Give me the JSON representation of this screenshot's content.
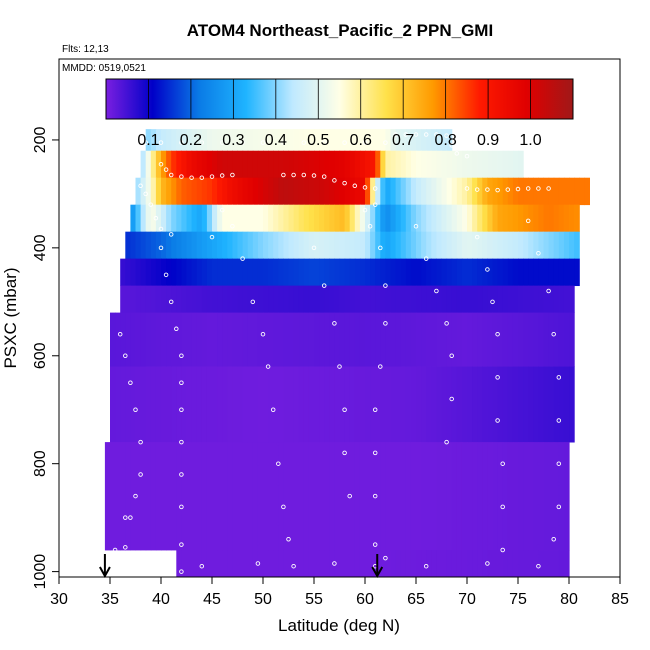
{
  "chart_data": {
    "type": "heatmap",
    "title": "ATOM4 Northeast_Pacific_2 PPN_GMI",
    "flights_label": "Flts: 12,13",
    "date_label": "MMDD: 0519,0521",
    "xlabel": "Latitude (deg N)",
    "ylabel": "PSXC (mbar)",
    "xlim": [
      30,
      85
    ],
    "ylim": [
      1010,
      50
    ],
    "y_reversed": true,
    "x_ticks": [
      30,
      35,
      40,
      45,
      50,
      55,
      60,
      65,
      70,
      75,
      80,
      85
    ],
    "x_tick_labels": [
      "30",
      "35",
      "40",
      "45",
      "50",
      "55",
      "60",
      "65",
      "70",
      "75",
      "80",
      "85"
    ],
    "y_ticks": [
      200,
      400,
      600,
      800,
      1000
    ],
    "y_tick_labels": [
      "200",
      "400",
      "600",
      "800",
      "1000"
    ],
    "colorbar": {
      "min": 0.0,
      "max": 1.1,
      "ticks": [
        0.1,
        0.2,
        0.3,
        0.4,
        0.5,
        0.6,
        0.7,
        0.8,
        0.9,
        1.0
      ],
      "tick_labels": [
        "0.1",
        "0.2",
        "0.3",
        "0.4",
        "0.5",
        "0.6",
        "0.7",
        "0.8",
        "0.9",
        "1.0"
      ],
      "colors": [
        "#7a1fe0",
        "#0000c8",
        "#0a7be6",
        "#1fb4ff",
        "#bfe9ff",
        "#ffffe6",
        "#ffe14a",
        "#ff9a00",
        "#ff1a00",
        "#e00000",
        "#a01818"
      ]
    },
    "layers": [
      {
        "p_top": 180,
        "p_bot": 220,
        "x0": 38.5,
        "x1": 68.5,
        "v": [
          [
            38.5,
            0.4
          ],
          [
            40,
            0.45
          ],
          [
            45,
            0.52
          ],
          [
            55,
            0.55
          ],
          [
            62,
            0.55
          ],
          [
            63,
            0.5
          ],
          [
            68.5,
            0.45
          ]
        ]
      },
      {
        "p_top": 220,
        "p_bot": 270,
        "x0": 38,
        "x1": 75.5,
        "v": [
          [
            38,
            0.4
          ],
          [
            40,
            0.75
          ],
          [
            41,
            0.85
          ],
          [
            43,
            0.95
          ],
          [
            46,
            1.02
          ],
          [
            52,
            1.02
          ],
          [
            58,
            0.98
          ],
          [
            61,
            0.9
          ],
          [
            62,
            0.6
          ],
          [
            65,
            0.55
          ],
          [
            70,
            0.52
          ],
          [
            75.5,
            0.5
          ]
        ]
      },
      {
        "p_top": 270,
        "p_bot": 320,
        "x0": 37.5,
        "x1": 82,
        "v": [
          [
            37.5,
            0.4
          ],
          [
            39,
            0.55
          ],
          [
            40,
            0.72
          ],
          [
            42,
            0.82
          ],
          [
            45,
            0.86
          ],
          [
            47,
            0.94
          ],
          [
            52,
            1.05
          ],
          [
            56,
            1.02
          ],
          [
            60,
            0.95
          ],
          [
            61,
            0.5
          ],
          [
            62,
            0.3
          ],
          [
            65,
            0.45
          ],
          [
            70,
            0.6
          ],
          [
            72,
            0.75
          ],
          [
            75,
            0.8
          ],
          [
            82,
            0.8
          ]
        ]
      },
      {
        "p_top": 320,
        "p_bot": 370,
        "x0": 37,
        "x1": 81,
        "v": [
          [
            37,
            0.25
          ],
          [
            39,
            0.55
          ],
          [
            41,
            0.4
          ],
          [
            44,
            0.3
          ],
          [
            46,
            0.55
          ],
          [
            50,
            0.55
          ],
          [
            54,
            0.65
          ],
          [
            58,
            0.72
          ],
          [
            60,
            0.5
          ],
          [
            62,
            0.25
          ],
          [
            65,
            0.4
          ],
          [
            70,
            0.55
          ],
          [
            73,
            0.75
          ],
          [
            78,
            0.8
          ],
          [
            81,
            0.78
          ]
        ]
      },
      {
        "p_top": 370,
        "p_bot": 420,
        "x0": 36.5,
        "x1": 81,
        "v": [
          [
            36.5,
            0.15
          ],
          [
            40,
            0.2
          ],
          [
            45,
            0.3
          ],
          [
            50,
            0.4
          ],
          [
            55,
            0.48
          ],
          [
            60,
            0.45
          ],
          [
            62,
            0.3
          ],
          [
            66,
            0.42
          ],
          [
            70,
            0.5
          ],
          [
            75,
            0.45
          ],
          [
            78,
            0.4
          ],
          [
            81,
            0.35
          ]
        ]
      },
      {
        "p_top": 420,
        "p_bot": 470,
        "x0": 36,
        "x1": 81,
        "v": [
          [
            36,
            0.06
          ],
          [
            40,
            0.1
          ],
          [
            45,
            0.15
          ],
          [
            50,
            0.15
          ],
          [
            55,
            0.17
          ],
          [
            60,
            0.15
          ],
          [
            65,
            0.12
          ],
          [
            70,
            0.15
          ],
          [
            75,
            0.12
          ],
          [
            81,
            0.12
          ]
        ]
      },
      {
        "p_top": 470,
        "p_bot": 520,
        "x0": 36,
        "x1": 80.5,
        "v": [
          [
            36,
            0.03
          ],
          [
            45,
            0.05
          ],
          [
            55,
            0.06
          ],
          [
            60,
            0.05
          ],
          [
            70,
            0.06
          ],
          [
            80.5,
            0.05
          ]
        ]
      },
      {
        "p_top": 520,
        "p_bot": 620,
        "x0": 35,
        "x1": 80.5,
        "v": [
          [
            35,
            0.03
          ],
          [
            45,
            0.02
          ],
          [
            60,
            0.03
          ],
          [
            70,
            0.02
          ],
          [
            80.5,
            0.04
          ]
        ]
      },
      {
        "p_top": 620,
        "p_bot": 760,
        "x0": 35,
        "x1": 80.5,
        "v": [
          [
            35,
            0.02
          ],
          [
            50,
            0.01
          ],
          [
            65,
            0.02
          ],
          [
            80.5,
            0.06
          ]
        ]
      },
      {
        "p_top": 760,
        "p_bot": 960,
        "x0": 34.5,
        "x1": 80,
        "v": [
          [
            34.5,
            0.01
          ],
          [
            50,
            0.01
          ],
          [
            65,
            0.01
          ],
          [
            80,
            0.02
          ]
        ]
      },
      {
        "p_top": 960,
        "p_bot": 1010,
        "x0": 41.5,
        "x1": 80,
        "v": [
          [
            41.5,
            0.01
          ],
          [
            60,
            0.01
          ],
          [
            80,
            0.02
          ]
        ]
      }
    ],
    "flight_track": [
      [
        38.5,
        205
      ],
      [
        40,
        205
      ],
      [
        42,
        205
      ],
      [
        44,
        205
      ],
      [
        46,
        205
      ],
      [
        48,
        205
      ],
      [
        50,
        205
      ],
      [
        52,
        205
      ],
      [
        54,
        205
      ],
      [
        56,
        205
      ],
      [
        58,
        205
      ],
      [
        60,
        205
      ],
      [
        62,
        205
      ],
      [
        63,
        190
      ],
      [
        64,
        190
      ],
      [
        65,
        190
      ],
      [
        66,
        190
      ],
      [
        67,
        190
      ],
      [
        68,
        192
      ],
      [
        68.5,
        210
      ],
      [
        69,
        225
      ],
      [
        70,
        230
      ],
      [
        40,
        245
      ],
      [
        40.5,
        255
      ],
      [
        41,
        265
      ],
      [
        42,
        268
      ],
      [
        43,
        270
      ],
      [
        44,
        270
      ],
      [
        45,
        268
      ],
      [
        46,
        266
      ],
      [
        47,
        265
      ],
      [
        52,
        265
      ],
      [
        53,
        265
      ],
      [
        54,
        265
      ],
      [
        55,
        266
      ],
      [
        56,
        268
      ],
      [
        57,
        275
      ],
      [
        58,
        280
      ],
      [
        59,
        285
      ],
      [
        60,
        288
      ],
      [
        61,
        290
      ],
      [
        70,
        290
      ],
      [
        71,
        292
      ],
      [
        72,
        292
      ],
      [
        73,
        293
      ],
      [
        74,
        292
      ],
      [
        75,
        291
      ],
      [
        76,
        290
      ],
      [
        77,
        290
      ],
      [
        78,
        290
      ],
      [
        38,
        285
      ],
      [
        38.5,
        300
      ],
      [
        39,
        320
      ],
      [
        39.5,
        345
      ],
      [
        40,
        365
      ],
      [
        41,
        375
      ],
      [
        45,
        380
      ],
      [
        36,
        560
      ],
      [
        36.5,
        600
      ],
      [
        37,
        650
      ],
      [
        37.5,
        700
      ],
      [
        38,
        760
      ],
      [
        38,
        820
      ],
      [
        37.5,
        860
      ],
      [
        37,
        900
      ],
      [
        36.5,
        955
      ],
      [
        40,
        400
      ],
      [
        40.5,
        450
      ],
      [
        41,
        500
      ],
      [
        41.5,
        550
      ],
      [
        42,
        600
      ],
      [
        42,
        650
      ],
      [
        42,
        700
      ],
      [
        42,
        760
      ],
      [
        42,
        820
      ],
      [
        42,
        880
      ],
      [
        42,
        950
      ],
      [
        42,
        1000
      ],
      [
        46,
        330
      ],
      [
        47,
        360
      ],
      [
        48,
        420
      ],
      [
        49,
        500
      ],
      [
        50,
        560
      ],
      [
        50.5,
        620
      ],
      [
        51,
        700
      ],
      [
        51.5,
        800
      ],
      [
        52,
        880
      ],
      [
        52.5,
        940
      ],
      [
        53,
        990
      ],
      [
        55,
        400
      ],
      [
        56,
        470
      ],
      [
        57,
        540
      ],
      [
        57.5,
        620
      ],
      [
        58,
        700
      ],
      [
        58,
        780
      ],
      [
        58.5,
        860
      ],
      [
        60,
        330
      ],
      [
        60.5,
        360
      ],
      [
        61,
        320
      ],
      [
        61.5,
        400
      ],
      [
        62,
        470
      ],
      [
        62,
        540
      ],
      [
        61.5,
        620
      ],
      [
        61,
        700
      ],
      [
        61,
        780
      ],
      [
        61,
        860
      ],
      [
        61,
        950
      ],
      [
        61,
        990
      ],
      [
        65,
        360
      ],
      [
        66,
        420
      ],
      [
        67,
        480
      ],
      [
        68,
        540
      ],
      [
        68.5,
        600
      ],
      [
        68.5,
        680
      ],
      [
        68,
        760
      ],
      [
        71,
        380
      ],
      [
        72,
        440
      ],
      [
        72.5,
        500
      ],
      [
        73,
        560
      ],
      [
        73,
        640
      ],
      [
        73,
        720
      ],
      [
        73.5,
        800
      ],
      [
        73.5,
        880
      ],
      [
        73.5,
        960
      ],
      [
        76,
        350
      ],
      [
        77,
        410
      ],
      [
        78,
        480
      ],
      [
        78.5,
        560
      ],
      [
        79,
        640
      ],
      [
        79,
        720
      ],
      [
        79,
        800
      ],
      [
        79,
        880
      ],
      [
        78.5,
        940
      ],
      [
        34.8,
        980
      ],
      [
        35.5,
        960
      ],
      [
        36.5,
        900
      ],
      [
        44,
        990
      ],
      [
        49.5,
        985
      ],
      [
        57,
        985
      ],
      [
        62,
        975
      ],
      [
        66,
        990
      ],
      [
        72,
        985
      ],
      [
        77,
        990
      ]
    ],
    "markers": [
      {
        "name": "left",
        "x": 34.5
      },
      {
        "name": "right",
        "x": 61.2
      }
    ]
  }
}
